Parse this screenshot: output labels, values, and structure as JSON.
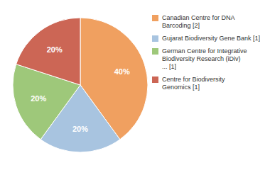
{
  "chart_data": {
    "type": "pie",
    "categories": [
      "Canadian Centre for DNA\nBarcoding [2]",
      "Gujarat Biodiversity Gene Bank [1]",
      "German Centre for Integrative\nBiodiversity Research (iDiv)\n... [1]",
      "Centre for Biodiversity\nGenomics [1]"
    ],
    "values": [
      40,
      20,
      20,
      20
    ],
    "value_labels": [
      "40%",
      "20%",
      "20%",
      "20%"
    ],
    "colors": [
      "#f0a060",
      "#a8c4e0",
      "#9ec87a",
      "#cc6655"
    ],
    "data_labels": true,
    "legend": "right"
  }
}
